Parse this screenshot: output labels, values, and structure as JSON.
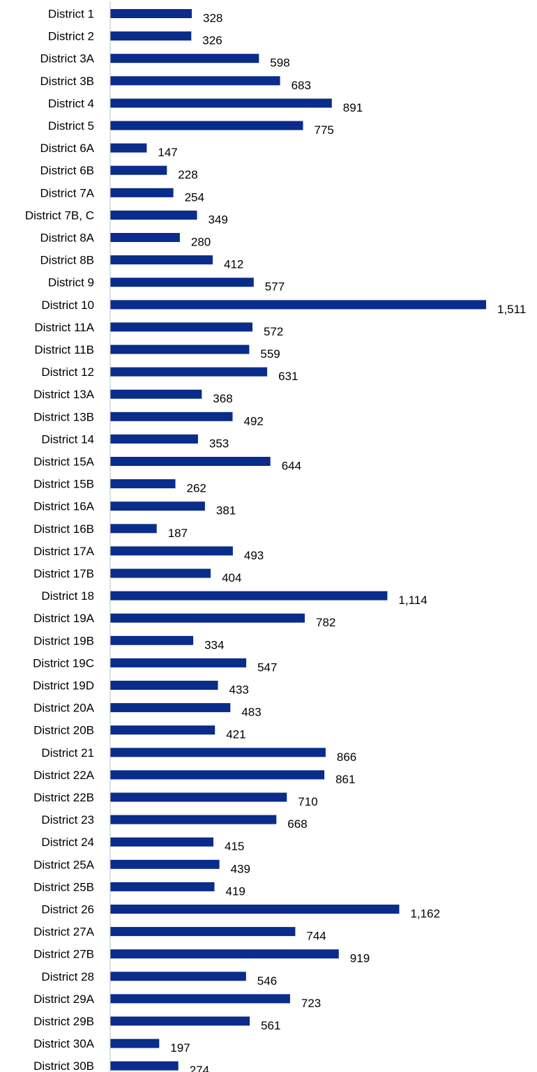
{
  "chart_data": {
    "type": "bar",
    "orientation": "horizontal",
    "title": "",
    "xlabel": "",
    "ylabel": "",
    "categories": [
      "District 1",
      "District 2",
      "District 3A",
      "District 3B",
      "District 4",
      "District 5",
      "District 6A",
      "District 6B",
      "District 7A",
      "District 7B, C",
      "District 8A",
      "District 8B",
      "District 9",
      "District 10",
      "District 11A",
      "District 11B",
      "District 12",
      "District 13A",
      "District 13B",
      "District 14",
      "District 15A",
      "District 15B",
      "District 16A",
      "District 16B",
      "District 17A",
      "District 17B",
      "District 18",
      "District 19A",
      "District 19B",
      "District 19C",
      "District 19D",
      "District 20A",
      "District 20B",
      "District 21",
      "District 22A",
      "District 22B",
      "District 23",
      "District 24",
      "District 25A",
      "District 25B",
      "District 26",
      "District 27A",
      "District 27B",
      "District 28",
      "District 29A",
      "District 29B",
      "District 30A",
      "District 30B"
    ],
    "values": [
      328,
      326,
      598,
      683,
      891,
      775,
      147,
      228,
      254,
      349,
      280,
      412,
      577,
      1511,
      572,
      559,
      631,
      368,
      492,
      353,
      644,
      262,
      381,
      187,
      493,
      404,
      1114,
      782,
      334,
      547,
      433,
      483,
      421,
      866,
      861,
      710,
      668,
      415,
      439,
      419,
      1162,
      744,
      919,
      546,
      723,
      561,
      197,
      274
    ],
    "value_labels": [
      "328",
      "326",
      "598",
      "683",
      "891",
      "775",
      "147",
      "228",
      "254",
      "349",
      "280",
      "412",
      "577",
      "1,511",
      "572",
      "559",
      "631",
      "368",
      "492",
      "353",
      "644",
      "262",
      "381",
      "187",
      "493",
      "404",
      "1,114",
      "782",
      "334",
      "547",
      "433",
      "483",
      "421",
      "866",
      "861",
      "710",
      "668",
      "415",
      "439",
      "419",
      "1,162",
      "744",
      "919",
      "546",
      "723",
      "561",
      "197",
      "274"
    ],
    "xlim": [
      0,
      1511
    ],
    "grid": false,
    "legend": "none",
    "bar_color": "#0A2C8A",
    "axis_color": "#BFBFBF"
  }
}
